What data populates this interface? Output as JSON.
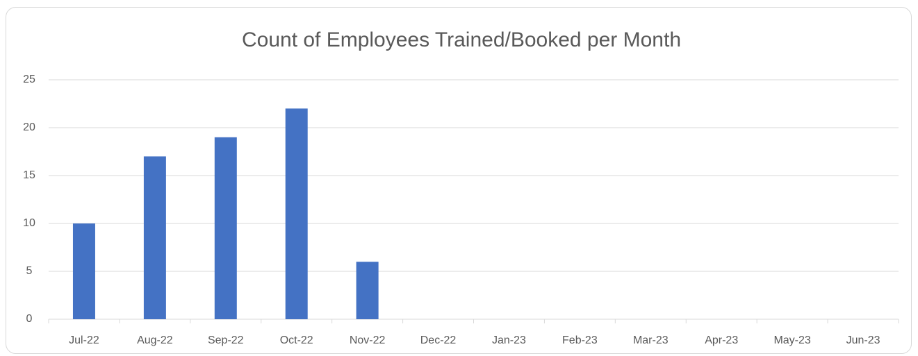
{
  "chart_data": {
    "type": "bar",
    "title": "Count of Employees Trained/Booked per Month",
    "categories": [
      "Jul-22",
      "Aug-22",
      "Sep-22",
      "Oct-22",
      "Nov-22",
      "Dec-22",
      "Jan-23",
      "Feb-23",
      "Mar-23",
      "Apr-23",
      "May-23",
      "Jun-23"
    ],
    "values": [
      10,
      17,
      19,
      22,
      6,
      null,
      null,
      null,
      null,
      null,
      null,
      null
    ],
    "color": "#4472c4",
    "ylim": [
      0,
      25
    ],
    "yticks": [
      0,
      5,
      10,
      15,
      20,
      25
    ],
    "grid": true
  }
}
